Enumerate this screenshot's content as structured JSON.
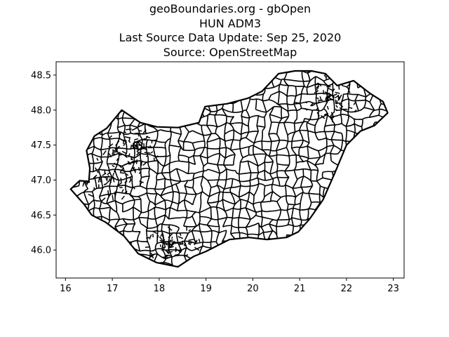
{
  "figure": {
    "title_lines": [
      "geoBoundaries.org - gbOpen",
      "HUN ADM3",
      "Last Source Data Update: Sep 25, 2020",
      "Source: OpenStreetMap"
    ]
  },
  "chart_data": {
    "type": "map",
    "region": "HUN ADM3",
    "xlim": [
      15.8,
      23.23
    ],
    "ylim": [
      45.6,
      48.69
    ],
    "x_ticks": [
      16,
      17,
      18,
      19,
      20,
      21,
      22,
      23
    ],
    "y_ticks": [
      46.0,
      46.5,
      47.0,
      47.5,
      48.0,
      48.5
    ],
    "x_tick_labels": [
      "16",
      "17",
      "18",
      "19",
      "20",
      "21",
      "22",
      "23"
    ],
    "y_tick_labels": [
      "46.0",
      "46.5",
      "47.0",
      "47.5",
      "48.0",
      "48.5"
    ],
    "grid": false,
    "outline_lonlat": [
      [
        16.11,
        46.87
      ],
      [
        16.3,
        46.99
      ],
      [
        16.5,
        46.98
      ],
      [
        16.52,
        47.17
      ],
      [
        16.45,
        47.42
      ],
      [
        16.62,
        47.63
      ],
      [
        16.88,
        47.74
      ],
      [
        17.2,
        48.0
      ],
      [
        17.6,
        47.82
      ],
      [
        17.95,
        47.76
      ],
      [
        18.4,
        47.75
      ],
      [
        18.85,
        47.82
      ],
      [
        18.98,
        48.05
      ],
      [
        19.45,
        48.09
      ],
      [
        19.9,
        48.17
      ],
      [
        20.2,
        48.27
      ],
      [
        20.55,
        48.52
      ],
      [
        20.9,
        48.56
      ],
      [
        21.25,
        48.56
      ],
      [
        21.55,
        48.52
      ],
      [
        21.8,
        48.35
      ],
      [
        22.15,
        48.42
      ],
      [
        22.5,
        48.24
      ],
      [
        22.78,
        48.12
      ],
      [
        22.88,
        47.96
      ],
      [
        22.6,
        47.78
      ],
      [
        22.3,
        47.7
      ],
      [
        22.0,
        47.5
      ],
      [
        21.75,
        47.1
      ],
      [
        21.5,
        46.72
      ],
      [
        21.22,
        46.45
      ],
      [
        20.97,
        46.26
      ],
      [
        20.72,
        46.18
      ],
      [
        20.3,
        46.15
      ],
      [
        19.92,
        46.18
      ],
      [
        19.5,
        46.15
      ],
      [
        19.0,
        45.98
      ],
      [
        18.74,
        45.91
      ],
      [
        18.4,
        45.76
      ],
      [
        17.95,
        45.82
      ],
      [
        17.55,
        45.95
      ],
      [
        17.25,
        46.2
      ],
      [
        16.85,
        46.4
      ],
      [
        16.56,
        46.5
      ],
      [
        16.4,
        46.65
      ],
      [
        16.11,
        46.87
      ]
    ]
  }
}
